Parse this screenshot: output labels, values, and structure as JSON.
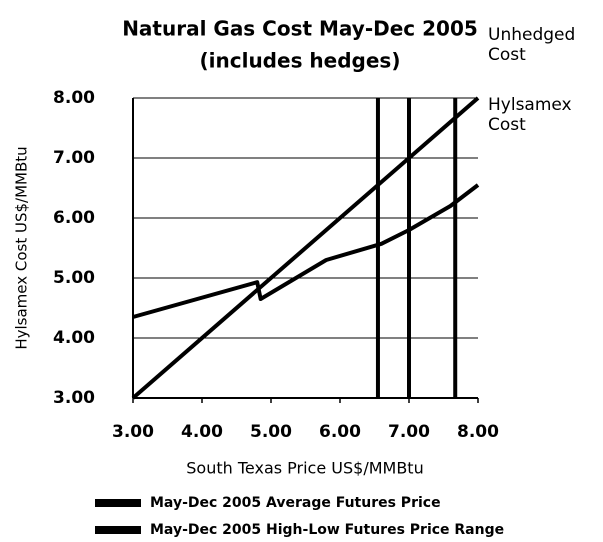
{
  "chart_data": {
    "type": "line",
    "title": "Natural Gas Cost May-Dec 2005",
    "subtitle": "(includes hedges)",
    "x_label": "South Texas Price US$/MMBtu",
    "y_label": "Hylsamex Cost US$/MMBtu",
    "xlim": [
      3,
      8
    ],
    "ylim": [
      3,
      8
    ],
    "xticks": [
      {
        "value": 3,
        "label": "3.00"
      },
      {
        "value": 4,
        "label": "4.00"
      },
      {
        "value": 5,
        "label": "5.00"
      },
      {
        "value": 6,
        "label": "6.00"
      },
      {
        "value": 7,
        "label": "7.00"
      },
      {
        "value": 8,
        "label": "8.00"
      }
    ],
    "yticks": [
      {
        "value": 3,
        "label": "3.00"
      },
      {
        "value": 4,
        "label": "4.00"
      },
      {
        "value": 5,
        "label": "5.00"
      },
      {
        "value": 6,
        "label": "6.00"
      },
      {
        "value": 7,
        "label": "7.00"
      },
      {
        "value": 8,
        "label": "8.00"
      }
    ],
    "grid": true,
    "series": [
      {
        "name": "Unhedged Cost",
        "color": "#000000",
        "x": [
          3,
          8
        ],
        "values": [
          3,
          8
        ]
      },
      {
        "name": "Hylsamex Cost",
        "color": "#000000",
        "x": [
          3,
          4.8,
          4.85,
          5.8,
          6.6,
          7.0,
          7.6,
          8.0
        ],
        "values": [
          4.35,
          4.93,
          4.65,
          5.3,
          5.57,
          5.8,
          6.2,
          6.55
        ]
      }
    ],
    "vertical_lines": [
      {
        "name": "May-Dec 2005 Average Futures Price",
        "color": "#000000",
        "x": [
          7.0
        ]
      },
      {
        "name": "May-Dec 2005 High-Low Futures Price Range",
        "color": "#000000",
        "x": [
          6.55,
          7.67
        ]
      }
    ]
  }
}
